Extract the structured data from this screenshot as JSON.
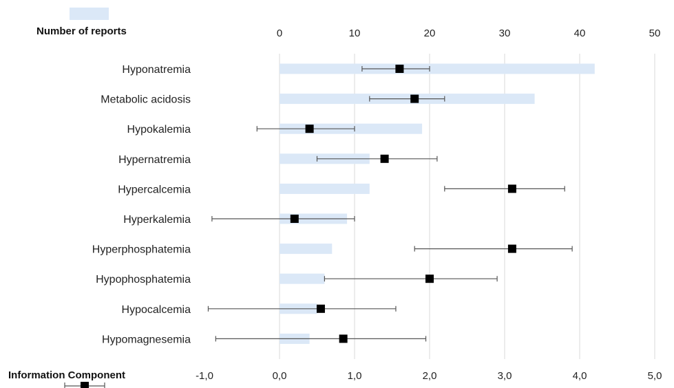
{
  "chart_data": {
    "type": "bar",
    "orientation": "horizontal",
    "categories": [
      "Hyponatremia",
      "Metabolic acidosis",
      "Hypokalemia",
      "Hypernatremia",
      "Hypercalcemia",
      "Hyperkalemia",
      "Hyperphosphatemia",
      "Hypophosphatemia",
      "Hypocalcemia",
      "Hypomagnesemia"
    ],
    "series": [
      {
        "name": "Number of reports",
        "axis": "top",
        "values": [
          42,
          34,
          19,
          12,
          12,
          9,
          7,
          6,
          5,
          4
        ]
      },
      {
        "name": "Information Component",
        "axis": "bottom",
        "values": [
          1.6,
          1.8,
          0.4,
          1.4,
          3.1,
          0.2,
          3.1,
          2.0,
          0.55,
          0.85
        ],
        "lower": [
          1.1,
          1.2,
          -0.3,
          0.5,
          2.2,
          -0.9,
          1.8,
          0.6,
          -0.95,
          -0.85
        ],
        "upper": [
          2.0,
          2.2,
          1.0,
          2.1,
          3.8,
          1.0,
          3.9,
          2.9,
          1.55,
          1.95
        ]
      }
    ],
    "top_axis": {
      "range": [
        -10,
        50
      ],
      "tick_values": [
        0,
        10,
        20,
        30,
        40,
        50
      ],
      "tick_labels": [
        "0",
        "10",
        "20",
        "30",
        "40",
        "50"
      ]
    },
    "bottom_axis": {
      "range": [
        -1,
        5
      ],
      "tick_values": [
        -1,
        0,
        1,
        2,
        3,
        4,
        5
      ],
      "tick_labels": [
        "-1,0",
        "0,0",
        "1,0",
        "2,0",
        "3,0",
        "4,0",
        "5,0"
      ]
    },
    "grid": true,
    "legend": {
      "position": "left",
      "entries": [
        "Number of reports",
        "Information Component"
      ]
    }
  }
}
